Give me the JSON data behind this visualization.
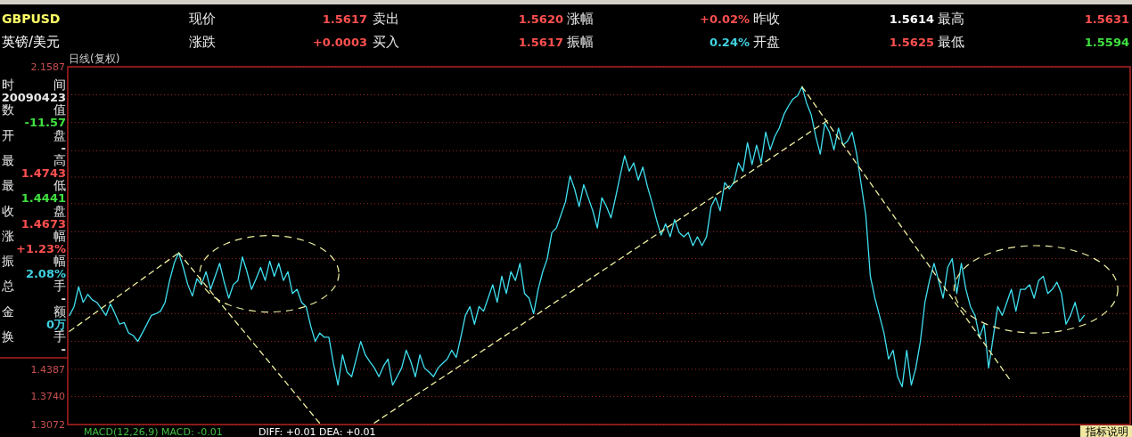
{
  "chart_data": {
    "type": "line",
    "categories": [
      null,
      null,
      null,
      null,
      null,
      null,
      null,
      null,
      null,
      null,
      null,
      null,
      null,
      null,
      null,
      null,
      null,
      null,
      null,
      null,
      null,
      null,
      null,
      null,
      null,
      null,
      null,
      null,
      null,
      null,
      null,
      null,
      null,
      null,
      null,
      null,
      null,
      null,
      null,
      null,
      null,
      null,
      null,
      null,
      null,
      null,
      null,
      null,
      null,
      null,
      null,
      null,
      null,
      null,
      null,
      null,
      null,
      null,
      null,
      null,
      null,
      null,
      null,
      null,
      null,
      null,
      null,
      null,
      null,
      null,
      null,
      null,
      null,
      null,
      null,
      null,
      null,
      null,
      null,
      null,
      null,
      null,
      null,
      null,
      null,
      null,
      null,
      null,
      null,
      null,
      null,
      null,
      null,
      null,
      null,
      null,
      null,
      null,
      null,
      null,
      null,
      null,
      null,
      null,
      null,
      null,
      null,
      null,
      null,
      null,
      null,
      null,
      null,
      null,
      null,
      null,
      null,
      null,
      null,
      null,
      null,
      null,
      null,
      null,
      null,
      null,
      null,
      null,
      null,
      null,
      null,
      null,
      null,
      null,
      null,
      null,
      null,
      null,
      null,
      null,
      null,
      null,
      null,
      null,
      null,
      null,
      null,
      null,
      null,
      null,
      null,
      null,
      null,
      null,
      null,
      null,
      null,
      null,
      null,
      null,
      null,
      null,
      null,
      null,
      null,
      null,
      null,
      null,
      null,
      null,
      null,
      null,
      null,
      null,
      null,
      null,
      null,
      null,
      null,
      null,
      null,
      null,
      null,
      null,
      null,
      null,
      null,
      null,
      null,
      null,
      null,
      null,
      null,
      null,
      null,
      null,
      null,
      null,
      null,
      null,
      null,
      null,
      null,
      null,
      null,
      null,
      null,
      null,
      null,
      null,
      null,
      null,
      null,
      null,
      null,
      null,
      null,
      null,
      null,
      null,
      null,
      null,
      null,
      null
    ],
    "series": [
      {
        "type": "line",
        "color": "#40e0f0",
        "line_style": "solid",
        "values": [
          1.567,
          1.588,
          1.635,
          1.598,
          1.617,
          1.604,
          1.598,
          1.583,
          1.567,
          1.594,
          1.571,
          1.546,
          1.55,
          1.525,
          1.519,
          1.505,
          1.525,
          1.546,
          1.567,
          1.571,
          1.577,
          1.598,
          1.65,
          1.691,
          1.716,
          1.681,
          1.64,
          1.613,
          1.654,
          1.64,
          1.671,
          1.629,
          1.66,
          1.691,
          1.646,
          1.608,
          1.64,
          1.65,
          1.706,
          1.671,
          1.629,
          1.654,
          1.681,
          1.65,
          1.696,
          1.66,
          1.691,
          1.65,
          1.671,
          1.619,
          1.629,
          1.598,
          1.588,
          1.542,
          1.505,
          1.525,
          1.515,
          1.515,
          1.453,
          1.401,
          1.473,
          1.432,
          1.421,
          1.463,
          1.505,
          1.473,
          1.457,
          1.442,
          1.421,
          1.446,
          1.463,
          1.401,
          1.421,
          1.442,
          1.484,
          1.457,
          1.421,
          1.473,
          1.442,
          1.432,
          1.421,
          1.442,
          1.453,
          1.463,
          1.484,
          1.467,
          1.515,
          1.567,
          1.588,
          1.546,
          1.588,
          1.577,
          1.608,
          1.64,
          1.598,
          1.66,
          1.619,
          1.671,
          1.65,
          1.691,
          1.619,
          1.608,
          1.571,
          1.629,
          1.671,
          1.702,
          1.764,
          1.775,
          1.806,
          1.837,
          1.899,
          1.868,
          1.826,
          1.878,
          1.847,
          1.816,
          1.775,
          1.847,
          1.826,
          1.799,
          1.847,
          1.899,
          1.947,
          1.91,
          1.93,
          1.889,
          1.92,
          1.874,
          1.837,
          1.795,
          1.758,
          1.785,
          1.754,
          1.795,
          1.764,
          1.754,
          1.764,
          1.733,
          1.754,
          1.733,
          1.754,
          1.826,
          1.847,
          1.816,
          1.883,
          1.868,
          1.883,
          1.93,
          1.91,
          1.978,
          1.926,
          1.972,
          1.93,
          2.003,
          1.961,
          1.993,
          2.013,
          2.045,
          2.065,
          2.082,
          2.09,
          2.111,
          2.072,
          2.045,
          1.993,
          1.951,
          2.024,
          2.003,
          1.961,
          2.013,
          1.972,
          1.982,
          2.003,
          1.951,
          1.878,
          1.806,
          1.66,
          1.608,
          1.567,
          1.525,
          1.463,
          1.484,
          1.421,
          1.397,
          1.484,
          1.401,
          1.442,
          1.505,
          1.598,
          1.65,
          1.691,
          1.65,
          1.608,
          1.681,
          1.702,
          1.619,
          1.691,
          1.629,
          1.588,
          1.567,
          1.515,
          1.546,
          1.442,
          1.515,
          1.588,
          1.567,
          1.598,
          1.629,
          1.577,
          1.629,
          1.629,
          1.64,
          1.608,
          1.65,
          1.66,
          1.619,
          1.629,
          1.646,
          1.619,
          1.546,
          1.567,
          1.598,
          1.552,
          1.567
        ]
      },
      {
        "type": "line",
        "color": "#f0f0a0",
        "line_style": "dashed",
        "values": [
          1.529,
          null,
          null,
          null,
          null,
          null,
          null,
          null,
          null,
          null,
          null,
          null,
          null,
          null,
          null,
          null,
          null,
          null,
          null,
          null,
          null,
          null,
          null,
          null,
          1.716,
          null,
          null,
          null,
          null,
          null,
          null,
          null,
          null,
          null,
          null,
          null,
          null,
          null,
          null,
          null,
          null,
          null,
          null,
          null,
          null,
          null,
          null,
          null,
          null,
          null,
          null,
          null,
          null,
          null,
          null,
          null,
          null,
          null,
          null,
          null,
          null,
          null,
          null,
          null,
          null,
          null,
          null,
          null,
          null,
          null,
          null,
          null,
          null,
          null,
          null,
          null,
          null,
          null,
          null,
          null,
          null,
          null,
          null,
          null,
          null,
          null,
          null,
          null,
          null,
          null,
          null,
          null,
          null,
          null,
          null,
          null,
          null,
          null,
          null,
          null,
          null,
          null,
          null,
          null,
          null,
          null,
          null,
          null,
          null,
          null,
          null,
          null,
          null,
          null,
          null,
          null,
          null,
          null,
          null,
          null,
          null,
          null,
          null,
          null,
          null,
          null,
          null,
          null,
          null,
          null,
          null,
          null,
          null,
          null,
          null,
          null,
          null,
          null,
          null,
          null,
          null,
          null,
          null,
          null,
          null,
          null,
          null,
          null,
          null,
          null,
          null,
          null,
          null,
          null,
          null,
          null,
          null,
          null,
          null,
          null,
          null,
          null,
          null,
          null,
          null,
          null,
          null,
          null,
          null,
          null,
          null,
          null,
          null,
          null,
          null,
          null,
          null,
          null,
          null,
          null,
          null,
          null,
          null,
          null,
          null,
          null,
          null,
          null,
          null,
          null,
          null,
          null,
          null,
          null,
          null,
          null,
          null,
          null,
          null,
          null,
          null,
          null,
          null,
          null,
          null,
          null,
          null,
          null,
          null,
          null,
          null,
          null,
          null,
          null,
          null,
          null,
          null,
          null,
          null,
          null,
          null,
          null,
          null,
          null
        ]
      },
      {
        "type": "line",
        "color": "#f0f0a0",
        "line_style": "dashed",
        "values": [
          null,
          null,
          null,
          null,
          null,
          null,
          null,
          null,
          null,
          null,
          null,
          null,
          null,
          null,
          null,
          null,
          null,
          null,
          null,
          null,
          null,
          null,
          null,
          null,
          1.716,
          null,
          null,
          null,
          null,
          null,
          null,
          null,
          null,
          null,
          null,
          null,
          null,
          null,
          null,
          null,
          null,
          null,
          null,
          null,
          null,
          null,
          null,
          null,
          null,
          null,
          null,
          null,
          null,
          null,
          null,
          1.31,
          null,
          null,
          null,
          null,
          null,
          null,
          null,
          null,
          null,
          null,
          null,
          null,
          null,
          null,
          null,
          null,
          null,
          null,
          null,
          null,
          null,
          null,
          null,
          null,
          null,
          null,
          null,
          null,
          null,
          null,
          null,
          null,
          null,
          null,
          null,
          null,
          null,
          null,
          null,
          null,
          null,
          null,
          null,
          null,
          null,
          null,
          null,
          null,
          null,
          null,
          null,
          null,
          null,
          null,
          null,
          null,
          null,
          null,
          null,
          null,
          null,
          null,
          null,
          null,
          null,
          null,
          null,
          null,
          null,
          null,
          null,
          null,
          null,
          null,
          null,
          null,
          null,
          null,
          null,
          null,
          null,
          null,
          null,
          null,
          null,
          null,
          null,
          null,
          null,
          null,
          null,
          null,
          null,
          null,
          null,
          null,
          null,
          null,
          null,
          null,
          null,
          null,
          null,
          null,
          null,
          null,
          null,
          null,
          null,
          null,
          null,
          null,
          null,
          null,
          null,
          null,
          null,
          null,
          null,
          null,
          null,
          null,
          null,
          null,
          null,
          null,
          null,
          null,
          null,
          null,
          null,
          null,
          null,
          null,
          null,
          null,
          null,
          null,
          null,
          null,
          null,
          null,
          null,
          null,
          null,
          null,
          null,
          null,
          null,
          null,
          null,
          null,
          null,
          null,
          null,
          null,
          null,
          null,
          null,
          null,
          null,
          null,
          null,
          null,
          null,
          null,
          null,
          null
        ]
      },
      {
        "type": "line",
        "color": "#f0f0a0",
        "line_style": "dashed",
        "values": [
          null,
          null,
          null,
          null,
          null,
          null,
          null,
          null,
          null,
          null,
          null,
          null,
          null,
          null,
          null,
          null,
          null,
          null,
          null,
          null,
          null,
          null,
          null,
          null,
          null,
          null,
          null,
          null,
          null,
          null,
          null,
          null,
          null,
          null,
          null,
          null,
          null,
          null,
          null,
          null,
          null,
          null,
          null,
          null,
          null,
          null,
          null,
          null,
          null,
          null,
          null,
          null,
          null,
          null,
          null,
          null,
          null,
          null,
          null,
          null,
          null,
          null,
          null,
          null,
          null,
          null,
          null,
          1.311,
          null,
          null,
          null,
          null,
          null,
          null,
          null,
          null,
          null,
          null,
          null,
          null,
          null,
          null,
          null,
          null,
          null,
          null,
          null,
          null,
          null,
          null,
          null,
          null,
          null,
          null,
          null,
          null,
          null,
          null,
          null,
          null,
          null,
          null,
          null,
          null,
          null,
          null,
          null,
          null,
          null,
          null,
          null,
          null,
          null,
          null,
          null,
          null,
          null,
          null,
          null,
          null,
          null,
          null,
          null,
          null,
          null,
          null,
          null,
          null,
          null,
          null,
          null,
          null,
          null,
          null,
          null,
          null,
          null,
          null,
          null,
          null,
          null,
          null,
          null,
          null,
          null,
          null,
          null,
          null,
          null,
          null,
          null,
          null,
          null,
          null,
          null,
          null,
          null,
          null,
          null,
          null,
          null,
          null,
          null,
          null,
          null,
          null,
          null,
          2.034,
          null,
          null,
          null,
          null,
          null,
          null,
          null,
          null,
          null,
          null,
          null,
          null,
          null,
          null,
          null,
          null,
          null,
          null,
          null,
          null,
          null,
          null,
          null,
          null,
          null,
          null,
          null,
          null,
          null,
          null,
          null,
          null,
          null,
          null,
          null,
          null,
          null,
          null,
          null,
          null,
          null,
          null,
          null,
          null,
          null,
          null,
          null,
          null,
          null,
          null,
          null,
          null,
          null,
          null,
          null,
          null
        ]
      },
      {
        "type": "line",
        "color": "#f0f0a0",
        "line_style": "dashed",
        "values": [
          null,
          null,
          null,
          null,
          null,
          null,
          null,
          null,
          null,
          null,
          null,
          null,
          null,
          null,
          null,
          null,
          null,
          null,
          null,
          null,
          null,
          null,
          null,
          null,
          null,
          null,
          null,
          null,
          null,
          null,
          null,
          null,
          null,
          null,
          null,
          null,
          null,
          null,
          null,
          null,
          null,
          null,
          null,
          null,
          null,
          null,
          null,
          null,
          null,
          null,
          null,
          null,
          null,
          null,
          null,
          null,
          null,
          null,
          null,
          null,
          null,
          null,
          null,
          null,
          null,
          null,
          null,
          null,
          null,
          null,
          null,
          null,
          null,
          null,
          null,
          null,
          null,
          null,
          null,
          null,
          null,
          null,
          null,
          null,
          null,
          null,
          null,
          null,
          null,
          null,
          null,
          null,
          null,
          null,
          null,
          null,
          null,
          null,
          null,
          null,
          null,
          null,
          null,
          null,
          null,
          null,
          null,
          null,
          null,
          null,
          null,
          null,
          null,
          null,
          null,
          null,
          null,
          null,
          null,
          null,
          null,
          null,
          null,
          null,
          null,
          null,
          null,
          null,
          null,
          null,
          null,
          null,
          null,
          null,
          null,
          null,
          null,
          null,
          null,
          null,
          null,
          null,
          null,
          null,
          null,
          null,
          null,
          null,
          null,
          null,
          null,
          null,
          null,
          null,
          null,
          null,
          null,
          null,
          null,
          null,
          null,
          2.111,
          null,
          null,
          null,
          null,
          null,
          null,
          null,
          null,
          null,
          null,
          null,
          null,
          null,
          null,
          null,
          null,
          null,
          null,
          null,
          null,
          null,
          null,
          null,
          null,
          null,
          null,
          null,
          null,
          null,
          null,
          null,
          null,
          null,
          null,
          null,
          null,
          null,
          null,
          null,
          null,
          null,
          null,
          null,
          null,
          null,
          1.409,
          null,
          null,
          null,
          null,
          null,
          null,
          null,
          null,
          null,
          null,
          null,
          null,
          null,
          null,
          null,
          null
        ]
      }
    ],
    "ylim": [
      1.3072,
      2.1587
    ],
    "yticks": [
      2.1587,
      {
        "value": 2.092,
        "label": null
      },
      {
        "value": 2.026,
        "label": null
      },
      {
        "value": 1.959,
        "label": null
      },
      {
        "value": 1.896,
        "label": null
      },
      {
        "value": 1.833,
        "label": null
      },
      {
        "value": 1.766,
        "label": null
      },
      {
        "value": 1.702,
        "label": null
      },
      {
        "value": 1.637,
        "label": null
      },
      {
        "value": 1.571,
        "label": null
      },
      {
        "value": 1.505,
        "label": null
      },
      1.4387,
      {
        "value": 1.374,
        "label": "1.3740"
      },
      1.3072
    ],
    "grid": "y",
    "tick_labels": "y",
    "annotations": [
      "GBPUSD",
      "英镑/美元",
      "现价",
      "1.5617",
      "卖出",
      "1.5620",
      "涨幅",
      "+0.02%",
      "昨收",
      "1.5614",
      "最高",
      "1.5631",
      "涨跌",
      "+0.0003",
      "买入",
      "1.5617",
      "振幅",
      "0.24%",
      "开盘",
      "1.5625",
      "最低",
      "1.5594",
      "日线(复权)",
      "时间",
      "20090423",
      "数值",
      "-11.57",
      "开盘",
      "-",
      "最高",
      "1.4743",
      "最低",
      "1.4441",
      "收盘",
      "1.4673",
      "涨幅",
      "+1.23%",
      "振幅",
      "2.08%",
      "总手",
      "-",
      "金额",
      "0万",
      "换手",
      "-",
      "MACD(12,26,9) MACD: -0.01",
      "DIFF: +0.01 DEA: +0.01",
      "指标说明"
    ]
  }
}
